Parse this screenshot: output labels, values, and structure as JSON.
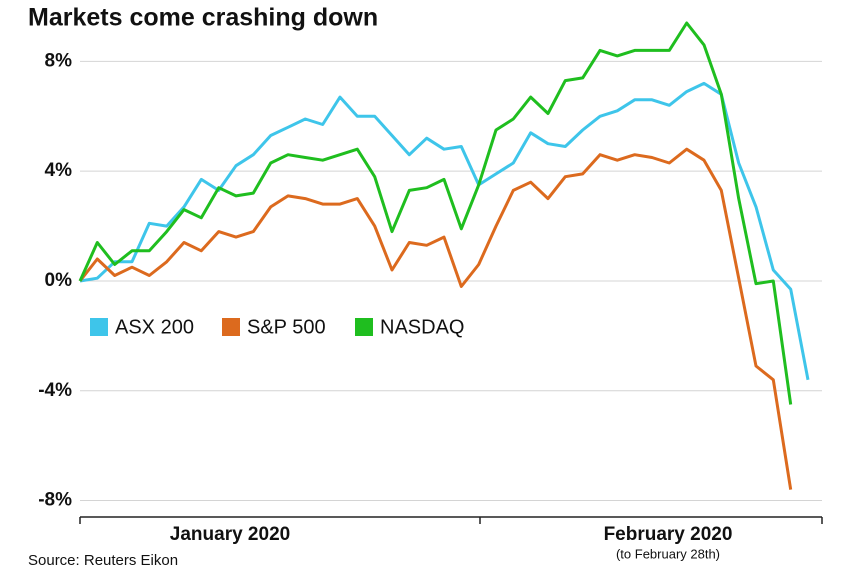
{
  "chart_data": {
    "type": "line",
    "title": "Markets come crashing down",
    "source": "Source: Reuters Eikon",
    "x_axis_labels": [
      "January 2020",
      "February 2020"
    ],
    "x_axis_note": "(to February 28th)",
    "categories": [
      null,
      null,
      null,
      null,
      null,
      null,
      null,
      null,
      null,
      null,
      null,
      null,
      null,
      null,
      null,
      null,
      null,
      null,
      null,
      null,
      null,
      null,
      null,
      null,
      null,
      null,
      null,
      null,
      null,
      null,
      null,
      null,
      null,
      null,
      null,
      null,
      null,
      null,
      null,
      null,
      null,
      null,
      null
    ],
    "series": [
      {
        "name": "ASX 200",
        "color": "#3ec5ea",
        "values": [
          0.0,
          0.1,
          0.7,
          0.7,
          2.1,
          2.0,
          2.7,
          3.7,
          3.3,
          4.2,
          4.6,
          5.3,
          5.6,
          5.9,
          5.7,
          6.7,
          6.0,
          6.0,
          5.3,
          4.6,
          5.2,
          4.8,
          4.9,
          3.5,
          3.9,
          4.3,
          5.4,
          5.0,
          4.9,
          5.5,
          6.0,
          6.2,
          6.6,
          6.6,
          6.4,
          6.9,
          7.2,
          6.8,
          4.3,
          2.7,
          0.4,
          -0.3,
          -3.6
        ]
      },
      {
        "name": "S&P 500",
        "color": "#dc6a1e",
        "values": [
          0.0,
          0.8,
          0.2,
          0.5,
          0.2,
          0.7,
          1.4,
          1.1,
          1.8,
          1.6,
          1.8,
          2.7,
          3.1,
          3.0,
          2.8,
          2.8,
          3.0,
          2.0,
          0.4,
          1.4,
          1.3,
          1.6,
          -0.2,
          0.6,
          2.0,
          3.3,
          3.6,
          3.0,
          3.8,
          3.9,
          4.6,
          4.4,
          4.6,
          4.5,
          4.3,
          4.8,
          4.4,
          3.3,
          0.1,
          -3.1,
          -3.6,
          -7.6,
          null
        ]
      },
      {
        "name": "NASDAQ",
        "color": "#1fbe1f",
        "values": [
          0.0,
          1.4,
          0.6,
          1.1,
          1.1,
          1.8,
          2.6,
          2.3,
          3.4,
          3.1,
          3.2,
          4.3,
          4.6,
          4.5,
          4.4,
          4.6,
          4.8,
          3.8,
          1.8,
          3.3,
          3.4,
          3.7,
          1.9,
          3.5,
          5.5,
          5.9,
          6.7,
          6.1,
          7.3,
          7.4,
          8.4,
          8.2,
          8.4,
          8.4,
          8.4,
          9.4,
          8.6,
          6.8,
          3.0,
          -0.1,
          0.0,
          -4.5,
          null
        ]
      }
    ],
    "ylim": [
      -8.6,
      9.8
    ],
    "yticks": [
      {
        "value": -8,
        "label": "-8%"
      },
      {
        "value": -4,
        "label": "-4%"
      },
      {
        "value": 0,
        "label": "0%"
      },
      {
        "value": 4,
        "label": "4%"
      },
      {
        "value": 8,
        "label": "8%"
      }
    ],
    "grid": true
  }
}
